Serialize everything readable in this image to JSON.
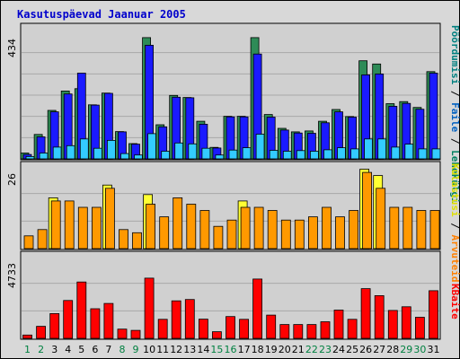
{
  "chart_data": {
    "title": "Kasutuspäevad Jaanuar 2005",
    "type": "bar",
    "categories": [
      "1",
      "2",
      "3",
      "4",
      "5",
      "6",
      "7",
      "8",
      "9",
      "10",
      "11",
      "12",
      "13",
      "14",
      "15",
      "16",
      "17",
      "18",
      "19",
      "20",
      "21",
      "22",
      "23",
      "24",
      "25",
      "26",
      "27",
      "28",
      "29",
      "30",
      "31"
    ],
    "weekend_days": [
      "1",
      "2",
      "8",
      "9",
      "15",
      "16",
      "22",
      "23",
      "29",
      "30"
    ],
    "colors": {
      "weekday_label": "#000000",
      "weekend_label": "#008040"
    },
    "panels": [
      {
        "name": "top",
        "max_label": "434",
        "ymax": 434,
        "series": [
          {
            "name": "Lehekülgi",
            "label_color": "#008060",
            "color": "#2e8b57",
            "values": [
              20,
              83,
              165,
              231,
              239,
              184,
              224,
              93,
              52,
              413,
              116,
              216,
              209,
              128,
              39,
              145,
              145,
              413,
              151,
              104,
              92,
              95,
              128,
              168,
              144,
              334,
              323,
              188,
              195,
              175,
              297
            ]
          },
          {
            "name": "Pöördumisi",
            "label_color": "#008080",
            "color": "#1a1aff",
            "values": [
              15,
              75,
              160,
              221,
              292,
              183,
              223,
              92,
              50,
              387,
              109,
              210,
              208,
              118,
              37,
              143,
              143,
              357,
              142,
              98,
              88,
              87,
              123,
              160,
              142,
              286,
              289,
              179,
              189,
              169,
              292
            ]
          },
          {
            "name": "Faile",
            "label_color": "#0060c0",
            "color": "#33ccff",
            "values": [
              8,
              20,
              40,
              45,
              68,
              36,
              63,
              18,
              13,
              86,
              26,
              54,
              51,
              36,
              13,
              30,
              38,
              84,
              29,
              26,
              28,
              26,
              31,
              38,
              34,
              68,
              68,
              40,
              50,
              34,
              34
            ]
          }
        ]
      },
      {
        "name": "middle",
        "max_label": "26",
        "ymax": 26,
        "series": [
          {
            "name": "Külastusi",
            "label_color": "#e0e000",
            "color": "#ffff33",
            "values": [
              0,
              0,
              16,
              0,
              0,
              0,
              20,
              0,
              0,
              17,
              0,
              0,
              0,
              0,
              0,
              0,
              15,
              0,
              0,
              0,
              0,
              0,
              0,
              0,
              0,
              25,
              23,
              0,
              0,
              0,
              0
            ]
          },
          {
            "name": "Arvuteid",
            "label_color": "#ff8000",
            "color": "#ff9900",
            "values": [
              4,
              6,
              15,
              15,
              13,
              13,
              19,
              6,
              5,
              14,
              10,
              16,
              14,
              12,
              7,
              9,
              13,
              13,
              12,
              9,
              9,
              10,
              13,
              10,
              12,
              24,
              19,
              13,
              13,
              12,
              12
            ]
          }
        ]
      },
      {
        "name": "bottom",
        "max_label": "4733",
        "ymax": 4733,
        "series": [
          {
            "name": "KBaite",
            "label_color": "#ff0000",
            "color": "#ff0000",
            "values": [
              190,
              690,
              1420,
              2170,
              3230,
              1700,
              2000,
              530,
              460,
              3450,
              1090,
              2150,
              2230,
              1100,
              380,
              1250,
              1090,
              3400,
              1330,
              790,
              790,
              790,
              950,
              1620,
              1090,
              2850,
              2450,
              1600,
              1810,
              1210,
              2730
            ]
          }
        ]
      }
    ]
  }
}
